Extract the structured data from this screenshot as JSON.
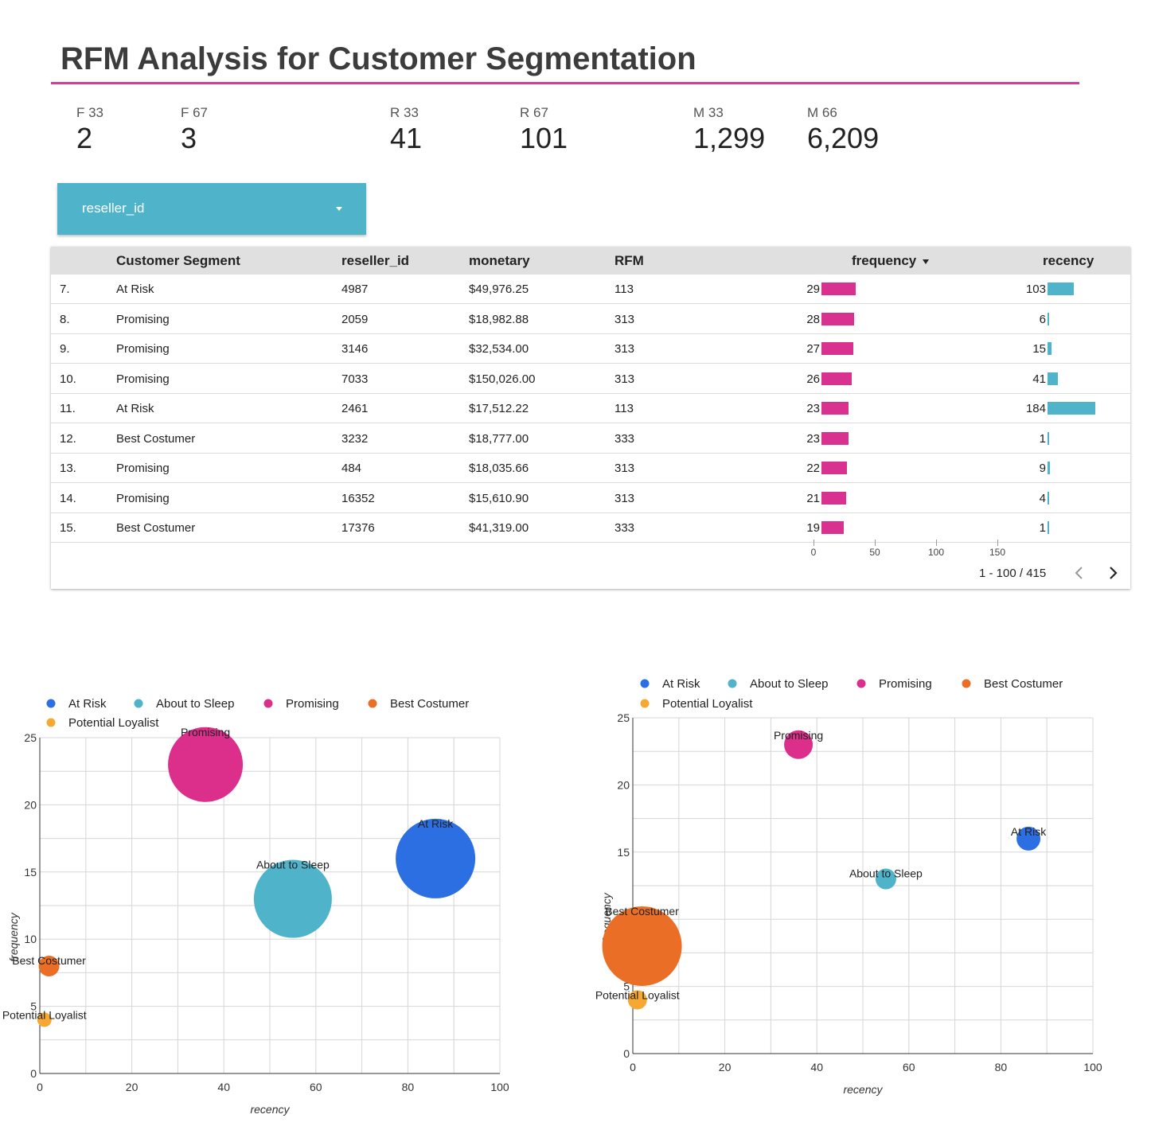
{
  "page": {
    "title": "RFM Analysis for Customer Segmentation"
  },
  "kpis": [
    {
      "label": "F 33",
      "value": "2"
    },
    {
      "label": "F 67",
      "value": "3"
    },
    {
      "label": "R 33",
      "value": "41"
    },
    {
      "label": "R 67",
      "value": "101"
    },
    {
      "label": "M 33",
      "value": "1,299"
    },
    {
      "label": "M 66",
      "value": "6,209"
    }
  ],
  "filter": {
    "label": "reseller_id",
    "icon": "caret-down-icon"
  },
  "table": {
    "columns": [
      "Customer Segment",
      "reseller_id",
      "monetary",
      "RFM",
      "frequency",
      "recency"
    ],
    "sort_icon": "sort-desc-icon",
    "rows": [
      {
        "idx": "7.",
        "segment": "At Risk",
        "reseller_id": "4987",
        "monetary": "$49,976.25",
        "rfm": "113",
        "frequency": 29,
        "recency": 103
      },
      {
        "idx": "8.",
        "segment": "Promising",
        "reseller_id": "2059",
        "monetary": "$18,982.88",
        "rfm": "313",
        "frequency": 28,
        "recency": 6
      },
      {
        "idx": "9.",
        "segment": "Promising",
        "reseller_id": "3146",
        "monetary": "$32,534.00",
        "rfm": "313",
        "frequency": 27,
        "recency": 15
      },
      {
        "idx": "10.",
        "segment": "Promising",
        "reseller_id": "7033",
        "monetary": "$150,026.00",
        "rfm": "313",
        "frequency": 26,
        "recency": 41
      },
      {
        "idx": "11.",
        "segment": "At Risk",
        "reseller_id": "2461",
        "monetary": "$17,512.22",
        "rfm": "113",
        "frequency": 23,
        "recency": 184
      },
      {
        "idx": "12.",
        "segment": "Best Costumer",
        "reseller_id": "3232",
        "monetary": "$18,777.00",
        "rfm": "333",
        "frequency": 23,
        "recency": 1
      },
      {
        "idx": "13.",
        "segment": "Promising",
        "reseller_id": "484",
        "monetary": "$18,035.66",
        "rfm": "313",
        "frequency": 22,
        "recency": 9
      },
      {
        "idx": "14.",
        "segment": "Promising",
        "reseller_id": "16352",
        "monetary": "$15,610.90",
        "rfm": "313",
        "frequency": 21,
        "recency": 4
      },
      {
        "idx": "15.",
        "segment": "Best Costumer",
        "reseller_id": "17376",
        "monetary": "$41,319.00",
        "rfm": "333",
        "frequency": 19,
        "recency": 1
      }
    ],
    "bar_axis_ticks": [
      "0",
      "50",
      "100",
      "150"
    ],
    "pagination": {
      "text": "1 - 100 / 415",
      "prev_icon": "chevron-left-icon",
      "next_icon": "chevron-right-icon"
    },
    "colors": {
      "frequency_bar": "#d9318f",
      "recency_bar": "#4fb3ca"
    }
  },
  "chart_data": [
    {
      "type": "scatter",
      "xlabel": "recency",
      "ylabel": "frequency",
      "xlim": [
        0,
        100
      ],
      "ylim": [
        0,
        25
      ],
      "x_ticks": [
        "0",
        "20",
        "40",
        "60",
        "80",
        "100"
      ],
      "y_ticks": [
        "0",
        "5",
        "10",
        "15",
        "20",
        "25"
      ],
      "grid": true,
      "legend_position": "top",
      "legend": [
        "At Risk",
        "About to Sleep",
        "Promising",
        "Best Costumer",
        "Potential Loyalist"
      ],
      "points": [
        {
          "label": "Promising",
          "x": 36,
          "y": 23,
          "size": 47,
          "color": "#dc2f8c"
        },
        {
          "label": "At Risk",
          "x": 86,
          "y": 16,
          "size": 50,
          "color": "#2b6fe3"
        },
        {
          "label": "About to Sleep",
          "x": 55,
          "y": 13,
          "size": 49,
          "color": "#4fb3ca"
        },
        {
          "label": "Best Costumer",
          "x": 2,
          "y": 8,
          "size": 13,
          "color": "#ea6e26"
        },
        {
          "label": "Potential Loyalist",
          "x": 1,
          "y": 4,
          "size": 9,
          "color": "#f6a832"
        }
      ]
    },
    {
      "type": "scatter",
      "xlabel": "recency",
      "ylabel": "frequency",
      "xlim": [
        0,
        100
      ],
      "ylim": [
        0,
        25
      ],
      "x_ticks": [
        "0",
        "20",
        "40",
        "60",
        "80",
        "100"
      ],
      "y_ticks": [
        "0",
        "5",
        "10",
        "15",
        "20",
        "25"
      ],
      "grid": true,
      "legend_position": "top",
      "legend": [
        "At Risk",
        "About to Sleep",
        "Promising",
        "Best Costumer",
        "Potential Loyalist"
      ],
      "points": [
        {
          "label": "Promising",
          "x": 36,
          "y": 23,
          "size": 18,
          "color": "#dc2f8c"
        },
        {
          "label": "At Risk",
          "x": 86,
          "y": 16,
          "size": 15,
          "color": "#2b6fe3"
        },
        {
          "label": "About to Sleep",
          "x": 55,
          "y": 13,
          "size": 13,
          "color": "#4fb3ca"
        },
        {
          "label": "Best Costumer",
          "x": 2,
          "y": 8,
          "size": 50,
          "color": "#ea6e26"
        },
        {
          "label": "Potential Loyalist",
          "x": 1,
          "y": 4,
          "size": 12,
          "color": "#f6a832"
        }
      ]
    }
  ]
}
